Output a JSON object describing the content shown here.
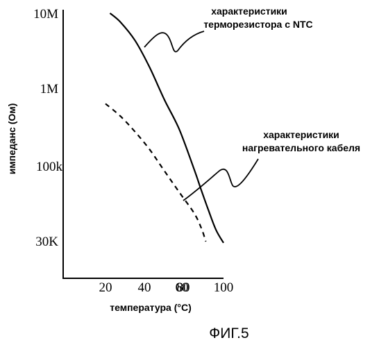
{
  "chart_data": {
    "type": "line",
    "title": "",
    "xlabel": "температура (°C)",
    "ylabel": "импеданс (Ом)",
    "xlim": [
      0,
      100
    ],
    "y_scale": "log",
    "x_ticks": [
      "20",
      "40",
      "60",
      "80",
      "100"
    ],
    "x_tick_values": [
      20,
      40,
      60,
      80,
      100
    ],
    "y_ticks": [
      "10M",
      "1M",
      "100k",
      "30K"
    ],
    "y_tick_values": [
      10000000,
      1000000,
      100000,
      30000
    ],
    "grid": false,
    "series": [
      {
        "name": "характеристики терморезистора с NTC",
        "line_style": "solid",
        "x": [
          23,
          30,
          40,
          50,
          60,
          70,
          80,
          85,
          90,
          95,
          100
        ],
        "y": [
          10000000,
          8000000,
          5000000,
          2500000,
          1100000,
          520000,
          190000,
          110000,
          65000,
          40000,
          29000
        ]
      },
      {
        "name": "характеристики нагревательного кабеля",
        "line_style": "dashed",
        "x": [
          20,
          30,
          40,
          50,
          60,
          70,
          80,
          85,
          88
        ],
        "y": [
          1000000,
          730000,
          490000,
          310000,
          180000,
          105000,
          62000,
          42000,
          30000
        ]
      }
    ],
    "annotations": [
      {
        "lines": [
          "характеристики",
          "терморезистора с NTC"
        ]
      },
      {
        "lines": [
          "характеристики",
          "нагревательного кабеля"
        ]
      }
    ]
  },
  "figure_caption": "ФИГ.5"
}
